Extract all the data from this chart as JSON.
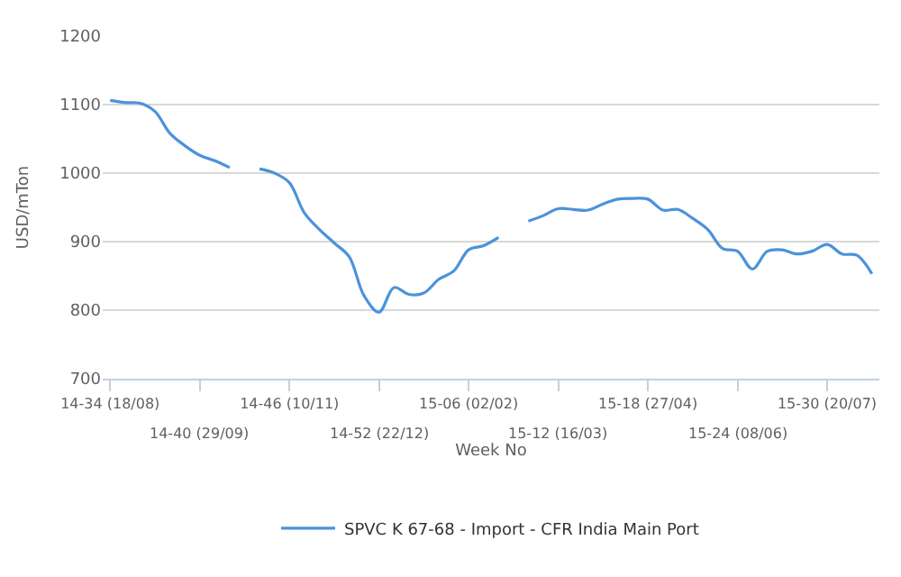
{
  "chart_data": {
    "type": "line",
    "xlabel": "Week No",
    "ylabel": "USD/mTon",
    "categories": [
      "14-34 (18/08)",
      null,
      null,
      null,
      null,
      null,
      "14-40 (29/09)",
      null,
      null,
      null,
      null,
      null,
      "14-46 (10/11)",
      null,
      null,
      null,
      null,
      null,
      "14-52 (22/12)",
      null,
      null,
      null,
      null,
      null,
      "15-06 (02/02)",
      null,
      null,
      null,
      null,
      null,
      "15-12 (16/03)",
      null,
      null,
      null,
      null,
      null,
      "15-18 (27/04)",
      null,
      null,
      null,
      null,
      null,
      "15-24 (08/06)",
      null,
      null,
      null,
      null,
      null,
      "15-30 (20/07)",
      null,
      null,
      null
    ],
    "series": [
      {
        "name": "SPVC K 67-68 - Import - CFR India Main Port",
        "color": "#4b92db",
        "values": [
          1106,
          1103,
          1102,
          1090,
          1058,
          1040,
          1026,
          1018,
          1008,
          null,
          1006,
          1000,
          986,
          942,
          918,
          898,
          878,
          821,
          797,
          833,
          823,
          825,
          845,
          857,
          888,
          894,
          906,
          null,
          930,
          938,
          948,
          947,
          946,
          955,
          962,
          963,
          962,
          946,
          947,
          934,
          918,
          890,
          886,
          860,
          886,
          888,
          882,
          886,
          896,
          882,
          880,
          853
        ]
      }
    ],
    "ylim": [
      700,
      1200
    ],
    "yticks": [
      700,
      800,
      900,
      1000,
      1100,
      1200
    ],
    "grid": "y",
    "legend": "bottom",
    "marker": "none",
    "line_style": "solid"
  }
}
